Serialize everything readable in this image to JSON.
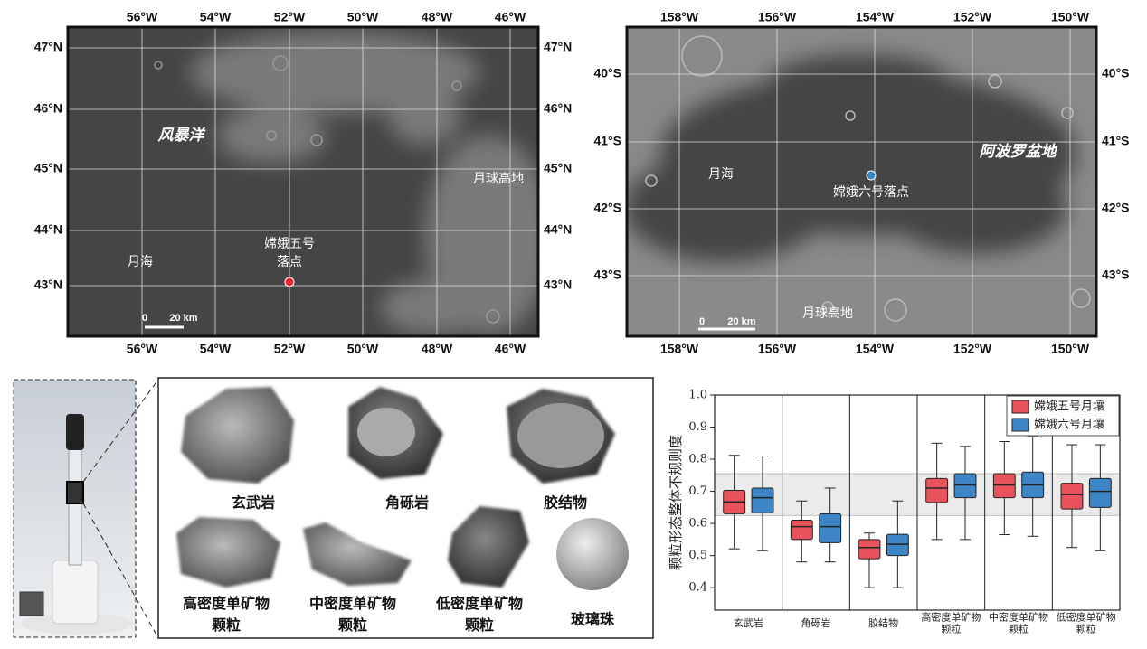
{
  "map_left": {
    "lon_labels": [
      "56°W",
      "54°W",
      "52°W",
      "50°W",
      "48°W",
      "46°W"
    ],
    "lat_labels": [
      "47°N",
      "46°N",
      "45°N",
      "44°N",
      "43°N"
    ],
    "region_big": "风暴洋",
    "region_highland": "月球高地",
    "region_mare": "月海",
    "site": "嫦娥五号\n落点",
    "scale_zero": "0",
    "scale_len": "20 km"
  },
  "map_right": {
    "lon_labels": [
      "158°W",
      "156°W",
      "154°W",
      "152°W",
      "150°W"
    ],
    "lat_labels": [
      "40°S",
      "41°S",
      "42°S",
      "43°S"
    ],
    "region_big": "阿波罗盆地",
    "region_highland": "月球高地",
    "region_mare": "月海",
    "site": "嫦娥六号落点",
    "scale_zero": "0",
    "scale_len": "20 km"
  },
  "particles": {
    "labels": [
      "玄武岩",
      "角砾岩",
      "胶结物",
      "高密度单矿物\n颗粒",
      "中密度单矿物\n颗粒",
      "低密度单矿物\n颗粒",
      "玻璃珠"
    ]
  },
  "chart_data": {
    "type": "box",
    "y_label": "颗粒形态整体不规则度",
    "categories": [
      "玄武岩",
      "角砾岩",
      "胶结物",
      "高密度单矿物\n颗粒",
      "中密度单矿物\n颗粒",
      "低密度单矿物\n颗粒"
    ],
    "ylim": [
      0.33,
      1.0
    ],
    "yticks": [
      {
        "value": 1.0,
        "label": "1.0"
      },
      0.9,
      0.8,
      0.7,
      0.6,
      0.5,
      0.4
    ],
    "shaded_band": [
      0.625,
      0.755
    ],
    "legend": "upper right",
    "series": [
      {
        "name": "嫦娥五号月壤",
        "color": "#e8525a",
        "whislo": [
          0.521,
          0.48,
          0.4,
          0.55,
          0.565,
          0.525
        ],
        "q1": [
          0.63,
          0.55,
          0.49,
          0.665,
          0.68,
          0.645
        ],
        "median": [
          0.667,
          0.59,
          0.525,
          0.71,
          0.72,
          0.69
        ],
        "q3": [
          0.703,
          0.61,
          0.55,
          0.74,
          0.755,
          0.725
        ],
        "whishi": [
          0.812,
          0.67,
          0.57,
          0.85,
          0.855,
          0.845
        ]
      },
      {
        "name": "嫦娥六号月壤",
        "color": "#3d85c6",
        "whislo": [
          0.515,
          0.48,
          0.4,
          0.55,
          0.56,
          0.515
        ],
        "q1": [
          0.633,
          0.54,
          0.5,
          0.68,
          0.68,
          0.65
        ],
        "median": [
          0.68,
          0.59,
          0.535,
          0.72,
          0.72,
          0.7
        ],
        "q3": [
          0.71,
          0.63,
          0.566,
          0.755,
          0.76,
          0.74
        ],
        "whishi": [
          0.81,
          0.71,
          0.67,
          0.84,
          0.87,
          0.845
        ]
      }
    ]
  }
}
